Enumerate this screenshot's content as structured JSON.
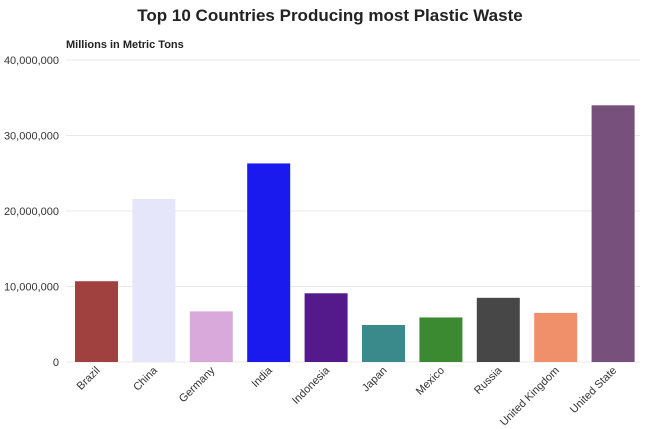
{
  "chart_data": {
    "type": "bar",
    "title": "Top 10 Countries Producing most Plastic Waste",
    "subtitle": "Millions in Metric Tons",
    "xlabel": "",
    "ylabel": "",
    "ylim": [
      0,
      40000000
    ],
    "yticks": [
      0,
      10000000,
      20000000,
      30000000,
      40000000
    ],
    "ytick_labels": [
      "0",
      "10,000,000",
      "20,000,000",
      "30,000,000",
      "40,000,000"
    ],
    "grid": true,
    "legend": "none",
    "categories": [
      "Brazil",
      "China",
      "Germany",
      "India",
      "Indonesia",
      "Japan",
      "Mexico",
      "Russia",
      "United Kingdom",
      "United State"
    ],
    "values": [
      10700000,
      21600000,
      6700000,
      26300000,
      9100000,
      4900000,
      5900000,
      8500000,
      6500000,
      34000000
    ],
    "colors": [
      "#a0403f",
      "#e6e6fa",
      "#d9a9dc",
      "#1a1aef",
      "#541a8b",
      "#3a8a8c",
      "#3b8a32",
      "#474747",
      "#f0906a",
      "#77507b"
    ]
  }
}
